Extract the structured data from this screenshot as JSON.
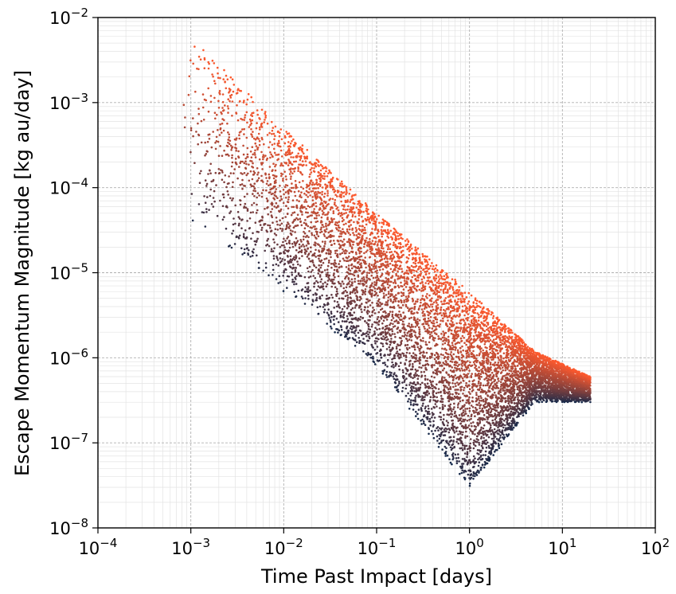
{
  "chart_data": {
    "type": "scatter",
    "xlabel": "Time Past Impact [days]",
    "ylabel": "Escape Momentum Magnitude [kg au/day]",
    "xscale": "log",
    "yscale": "log",
    "xlim": [
      0.0001,
      100
    ],
    "ylim": [
      1e-08,
      0.01
    ],
    "grid": true,
    "x_ticks": [
      {
        "base": "10",
        "exp": "−4",
        "value": 0.0001
      },
      {
        "base": "10",
        "exp": "−3",
        "value": 0.001
      },
      {
        "base": "10",
        "exp": "−2",
        "value": 0.01
      },
      {
        "base": "10",
        "exp": "−1",
        "value": 0.1
      },
      {
        "base": "10",
        "exp": "0",
        "value": 1
      },
      {
        "base": "10",
        "exp": "1",
        "value": 10
      },
      {
        "base": "10",
        "exp": "2",
        "value": 100
      }
    ],
    "y_ticks": [
      {
        "base": "10",
        "exp": "−8",
        "value": 1e-08
      },
      {
        "base": "10",
        "exp": "−7",
        "value": 1e-07
      },
      {
        "base": "10",
        "exp": "−6",
        "value": 1e-06
      },
      {
        "base": "10",
        "exp": "−5",
        "value": 1e-05
      },
      {
        "base": "10",
        "exp": "−4",
        "value": 0.0001
      },
      {
        "base": "10",
        "exp": "−3",
        "value": 0.001
      },
      {
        "base": "10",
        "exp": "−2",
        "value": 0.01
      }
    ],
    "point_cloud": {
      "x_range": [
        0.0008,
        20
      ],
      "upper_edge": [
        [
          0.001,
          0.006
        ],
        [
          0.01,
          0.0005
        ],
        [
          0.1,
          5e-05
        ],
        [
          1,
          6e-06
        ],
        [
          5,
          1.2e-06
        ],
        [
          20,
          6e-07
        ]
      ],
      "lower_edge": [
        [
          0.001,
          4e-05
        ],
        [
          0.01,
          6e-06
        ],
        [
          0.1,
          8e-07
        ],
        [
          0.5,
          8e-08
        ],
        [
          1,
          3e-08
        ],
        [
          5,
          3e-07
        ],
        [
          20,
          3e-07
        ]
      ],
      "color_low": "#13294b",
      "color_high": "#ff5a2e"
    },
    "colors": {
      "frame": "#000000",
      "grid_major": "#b0b0b0",
      "grid_minor": "#e3e3e3"
    }
  }
}
